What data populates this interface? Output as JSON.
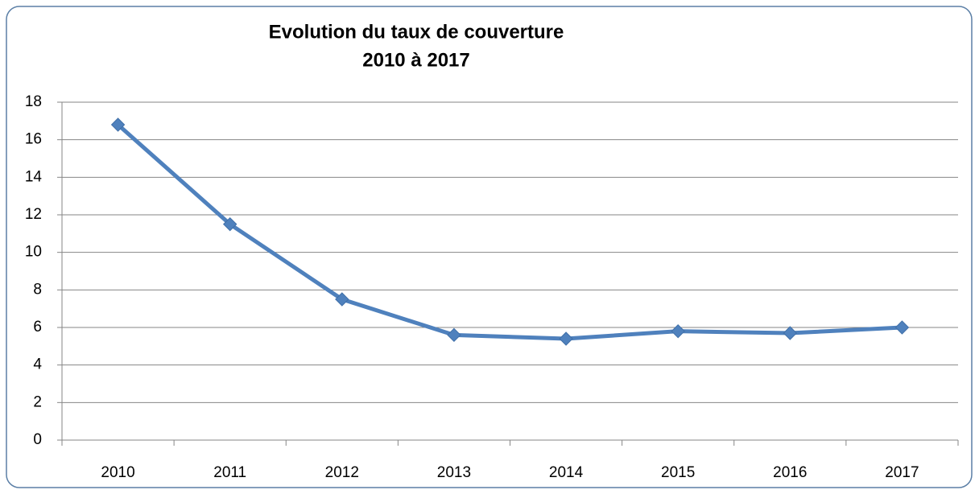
{
  "chart_data": {
    "type": "line",
    "title": "Evolution du taux de couverture",
    "subtitle": "2010 à 2017",
    "categories": [
      "2010",
      "2011",
      "2012",
      "2013",
      "2014",
      "2015",
      "2016",
      "2017"
    ],
    "series": [
      {
        "color": "#4f81bd",
        "values": [
          16.8,
          11.5,
          7.5,
          5.6,
          5.4,
          5.8,
          5.7,
          6.0
        ]
      }
    ],
    "ylim": [
      0,
      18
    ],
    "yticks": [
      0,
      2,
      4,
      6,
      8,
      10,
      12,
      14,
      16,
      18
    ],
    "grid": true
  }
}
